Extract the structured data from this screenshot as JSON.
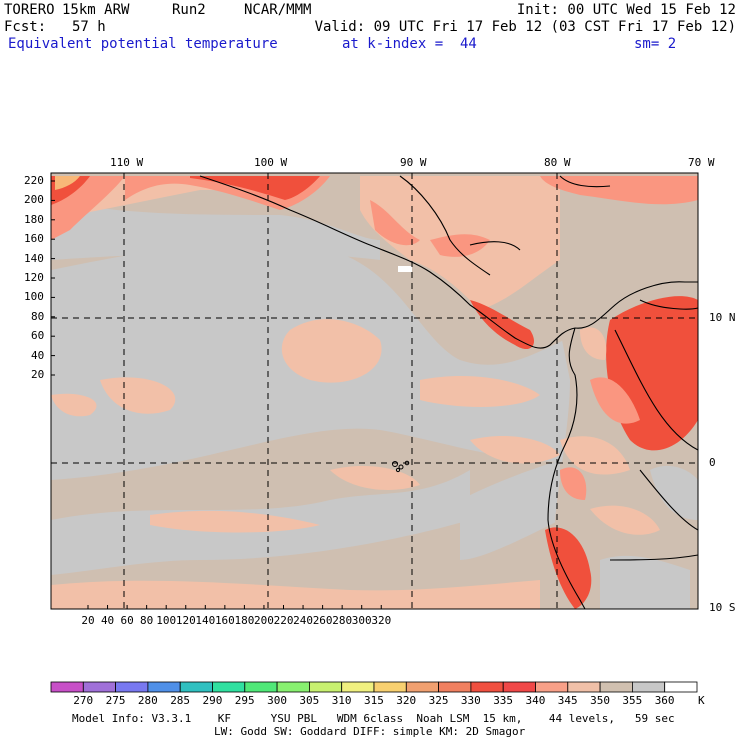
{
  "header": {
    "model": "TORERO",
    "resolution": "15km ARW",
    "run": "Run2",
    "org": "NCAR/MMM",
    "init": "Init: 00 UTC Wed 15 Feb 12",
    "fcst_label": "Fcst:",
    "fcst_value": "57 h",
    "valid": "Valid: 09 UTC Fri 17 Feb 12 (03 CST Fri 17 Feb 12)",
    "field": "Equivalent potential temperature",
    "level": "at k-index =  44",
    "smooth": "sm= 2"
  },
  "map": {
    "top_lon_labels": [
      "110 W",
      "100 W",
      "90 W",
      "80 W",
      "70 W"
    ],
    "right_lat_labels": [
      "10 N",
      "0",
      "10 S"
    ],
    "y_ticks": [
      "220",
      "200",
      "180",
      "160",
      "140",
      "120",
      "100",
      "80",
      "60",
      "40",
      "20"
    ],
    "x_ticks": [
      "20",
      "40",
      "60",
      "80",
      "100",
      "120",
      "140",
      "160",
      "180",
      "200",
      "220",
      "240",
      "260",
      "280",
      "300",
      "320"
    ],
    "colors": {
      "ocean_gray": "#c8c8c8",
      "tan": "#cfbfb1",
      "peach": "#f2c0a8",
      "salmon": "#fa9680",
      "red": "#f0503c",
      "orange": "#f0a050"
    }
  },
  "colorbar": {
    "levels": [
      "270",
      "275",
      "280",
      "285",
      "290",
      "295",
      "300",
      "305",
      "310",
      "315",
      "320",
      "325",
      "330",
      "335",
      "340",
      "345",
      "350",
      "355",
      "360"
    ],
    "unit": "K",
    "colors": [
      "#c850c8",
      "#a070d8",
      "#7878f0",
      "#5090e8",
      "#30c0c0",
      "#30e0a0",
      "#50e878",
      "#88f070",
      "#c8f070",
      "#f0f080",
      "#f8d070",
      "#f0a070",
      "#f08060",
      "#f05040",
      "#f04848",
      "#f8a088",
      "#f0c0a8",
      "#d0c0b0",
      "#c8c8c8",
      "#ffffff"
    ]
  },
  "footer": {
    "line1": "Model Info: V3.3.1    KF      YSU PBL   WDM 6class  Noah LSM  15 km,    44 levels,   59 sec",
    "line2": "LW: Godd SW: Goddard DIFF: simple KM: 2D Smagor"
  }
}
